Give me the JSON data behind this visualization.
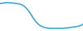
{
  "x": [
    0,
    1,
    2,
    3,
    4,
    5,
    6,
    7,
    8,
    9,
    10,
    11,
    12,
    13,
    14,
    15,
    16,
    17,
    18,
    19,
    20,
    21,
    22,
    23,
    24,
    25,
    26,
    27,
    28,
    29,
    30,
    31,
    32,
    33,
    34,
    35,
    36,
    37,
    38,
    39,
    40
  ],
  "y": [
    0.93,
    0.94,
    0.95,
    0.96,
    0.96,
    0.95,
    0.95,
    0.94,
    0.93,
    0.92,
    0.9,
    0.87,
    0.82,
    0.75,
    0.66,
    0.55,
    0.44,
    0.34,
    0.26,
    0.2,
    0.16,
    0.13,
    0.11,
    0.1,
    0.09,
    0.09,
    0.09,
    0.09,
    0.09,
    0.09,
    0.09,
    0.1,
    0.1,
    0.11,
    0.12,
    0.13,
    0.14,
    0.15,
    0.17,
    0.19,
    0.23
  ],
  "line_color": "#4badd4",
  "line_width": 1.5,
  "background_color": "#ffffff"
}
